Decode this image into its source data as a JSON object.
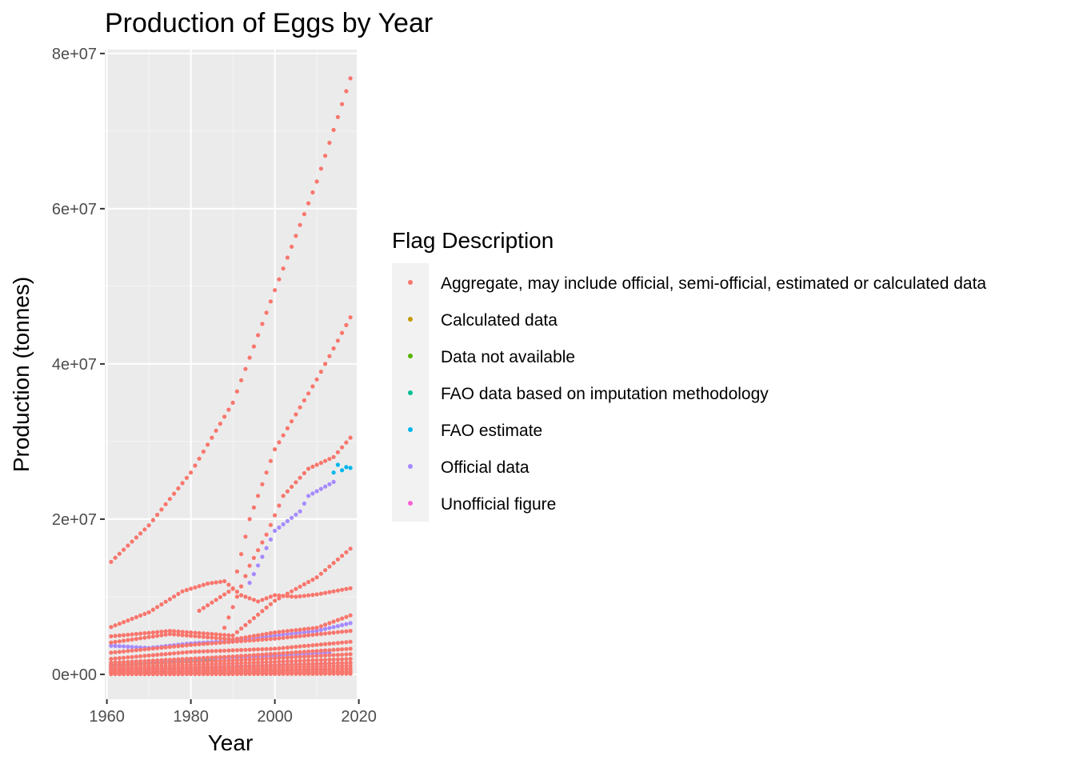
{
  "chart_data": {
    "type": "scatter",
    "title": "Production of Eggs by Year",
    "xlabel": "Year",
    "ylabel": "Production (tonnes)",
    "xlim": [
      1959.5,
      2019.5
    ],
    "ylim": [
      -3200000,
      80500000
    ],
    "x_ticks": [
      1960,
      1980,
      2000,
      2020
    ],
    "x_tick_labels": [
      "1960",
      "1980",
      "2000",
      "2020"
    ],
    "y_ticks": [
      0,
      20000000,
      40000000,
      60000000,
      80000000
    ],
    "y_tick_labels": [
      "0e+00",
      "2e+07",
      "4e+07",
      "6e+07",
      "8e+07"
    ],
    "grid": true,
    "legend": {
      "title": "Flag Description",
      "position": "right",
      "entries": [
        {
          "label": "Aggregate, may include official, semi-official, estimated or calculated data",
          "color": "#F8766D"
        },
        {
          "label": "Calculated data",
          "color": "#C49A00"
        },
        {
          "label": "Data not available",
          "color": "#53B400"
        },
        {
          "label": "FAO data based on imputation methodology",
          "color": "#00C094"
        },
        {
          "label": "FAO estimate",
          "color": "#00B6EB"
        },
        {
          "label": "Official data",
          "color": "#A58AFF"
        },
        {
          "label": "Unofficial figure",
          "color": "#FB61D7"
        }
      ]
    },
    "series": [
      {
        "flag": "Aggregate, may include official, semi-official, estimated or calculated data",
        "color": "#F8766D",
        "segments": [
          {
            "x0": 1961,
            "x1": 2018,
            "points": [
              [
                1961,
                14500000
              ],
              [
                1970,
                19200000
              ],
              [
                1980,
                26000000
              ],
              [
                1990,
                35000000
              ],
              [
                2000,
                49500000
              ],
              [
                2010,
                63500000
              ],
              [
                2018,
                76800000
              ]
            ]
          },
          {
            "x0": 1961,
            "x1": 2018,
            "points": [
              [
                1961,
                6100000
              ],
              [
                1970,
                8000000
              ],
              [
                1978,
                10700000
              ],
              [
                1984,
                11700000
              ],
              [
                1988,
                12000000
              ],
              [
                1992,
                10200000
              ],
              [
                1996,
                9400000
              ],
              [
                2000,
                10200000
              ],
              [
                2005,
                10000000
              ],
              [
                2010,
                10300000
              ],
              [
                2018,
                11100000
              ]
            ]
          },
          {
            "x0": 1982,
            "x1": 2018,
            "points": [
              [
                1982,
                8200000
              ],
              [
                1990,
                11000000
              ],
              [
                1994,
                20000000
              ],
              [
                2000,
                29000000
              ],
              [
                2010,
                38000000
              ],
              [
                2018,
                46000000
              ]
            ]
          },
          {
            "x0": 1988,
            "x1": 2018,
            "points": [
              [
                1988,
                6000000
              ],
              [
                1994,
                14000000
              ],
              [
                1998,
                18000000
              ],
              [
                2002,
                23000000
              ],
              [
                2008,
                26500000
              ],
              [
                2014,
                28000000
              ],
              [
                2018,
                30500000
              ]
            ]
          },
          {
            "x0": 1961,
            "x1": 2018,
            "points": [
              [
                1961,
                4900000
              ],
              [
                1975,
                5600000
              ],
              [
                1990,
                5000000
              ],
              [
                2000,
                9500000
              ],
              [
                2010,
                12500000
              ],
              [
                2018,
                16200000
              ]
            ]
          },
          {
            "x0": 1961,
            "x1": 2018,
            "points": [
              [
                1961,
                4100000
              ],
              [
                1975,
                5200000
              ],
              [
                1990,
                4500000
              ],
              [
                2000,
                5400000
              ],
              [
                2010,
                6000000
              ],
              [
                2018,
                7600000
              ]
            ]
          },
          {
            "x0": 1961,
            "x1": 2018,
            "points": [
              [
                1961,
                2800000
              ],
              [
                1980,
                3800000
              ],
              [
                2000,
                4600000
              ],
              [
                2018,
                5600000
              ]
            ]
          },
          {
            "x0": 1961,
            "x1": 2018,
            "points": [
              [
                1961,
                2000000
              ],
              [
                1980,
                2900000
              ],
              [
                2000,
                3300000
              ],
              [
                2018,
                4200000
              ]
            ]
          },
          {
            "x0": 1961,
            "x1": 2018,
            "points": [
              [
                1961,
                1500000
              ],
              [
                1990,
                2300000
              ],
              [
                2018,
                3300000
              ]
            ]
          },
          {
            "x0": 1961,
            "x1": 2018,
            "points": [
              [
                1961,
                1200000
              ],
              [
                1990,
                1800000
              ],
              [
                2018,
                2600000
              ]
            ]
          },
          {
            "x0": 1961,
            "x1": 2018,
            "points": [
              [
                1961,
                900000
              ],
              [
                1990,
                1400000
              ],
              [
                2018,
                2000000
              ]
            ]
          },
          {
            "x0": 1961,
            "x1": 2018,
            "points": [
              [
                1961,
                700000
              ],
              [
                1990,
                1000000
              ],
              [
                2018,
                1500000
              ]
            ]
          },
          {
            "x0": 1961,
            "x1": 2018,
            "points": [
              [
                1961,
                500000
              ],
              [
                1990,
                750000
              ],
              [
                2018,
                1100000
              ]
            ]
          },
          {
            "x0": 1961,
            "x1": 2018,
            "points": [
              [
                1961,
                350000
              ],
              [
                1990,
                500000
              ],
              [
                2018,
                750000
              ]
            ]
          },
          {
            "x0": 1961,
            "x1": 2018,
            "points": [
              [
                1961,
                200000
              ],
              [
                1990,
                300000
              ],
              [
                2018,
                450000
              ]
            ]
          },
          {
            "x0": 1961,
            "x1": 2018,
            "points": [
              [
                1961,
                100000
              ],
              [
                1990,
                150000
              ],
              [
                2018,
                220000
              ]
            ]
          },
          {
            "x0": 1961,
            "x1": 2018,
            "points": [
              [
                1961,
                30000
              ],
              [
                1990,
                50000
              ],
              [
                2018,
                80000
              ]
            ]
          }
        ]
      },
      {
        "flag": "Official data",
        "color": "#A58AFF",
        "segments": [
          {
            "x0": 1961,
            "x1": 2018,
            "points": [
              [
                1961,
                3700000
              ],
              [
                1970,
                3400000
              ],
              [
                1980,
                4000000
              ],
              [
                1990,
                4300000
              ],
              [
                2000,
                5000000
              ],
              [
                2010,
                5600000
              ],
              [
                2018,
                6600000
              ]
            ]
          },
          {
            "x0": 1994,
            "x1": 2014,
            "points": [
              [
                1994,
                11800000
              ],
              [
                2000,
                18500000
              ],
              [
                2006,
                21000000
              ],
              [
                2008,
                23000000
              ],
              [
                2014,
                24800000
              ]
            ]
          },
          {
            "x0": 1961,
            "x1": 2013,
            "points": [
              [
                1961,
                1100000
              ],
              [
                1980,
                1900000
              ],
              [
                2000,
                2400000
              ],
              [
                2013,
                2800000
              ]
            ]
          },
          {
            "x0": 1961,
            "x1": 2013,
            "points": [
              [
                1961,
                600000
              ],
              [
                1980,
                900000
              ],
              [
                2000,
                1200000
              ],
              [
                2013,
                1400000
              ]
            ]
          },
          {
            "x0": 1961,
            "x1": 2013,
            "points": [
              [
                1961,
                300000
              ],
              [
                1980,
                450000
              ],
              [
                2000,
                550000
              ],
              [
                2013,
                650000
              ]
            ]
          }
        ]
      },
      {
        "flag": "FAO estimate",
        "color": "#00B6EB",
        "segments": [
          {
            "x0": 2014,
            "x1": 2018,
            "points": [
              [
                2014,
                26000000
              ],
              [
                2015,
                27000000
              ],
              [
                2016,
                26300000
              ],
              [
                2017,
                26700000
              ],
              [
                2018,
                26600000
              ]
            ]
          }
        ]
      },
      {
        "flag": "FAO data based on imputation methodology",
        "color": "#00C094",
        "segments": [
          {
            "x0": 1961,
            "x1": 1985,
            "points": [
              [
                1961,
                1200000
              ],
              [
                1975,
                1500000
              ],
              [
                1985,
                1800000
              ]
            ]
          }
        ]
      }
    ]
  }
}
